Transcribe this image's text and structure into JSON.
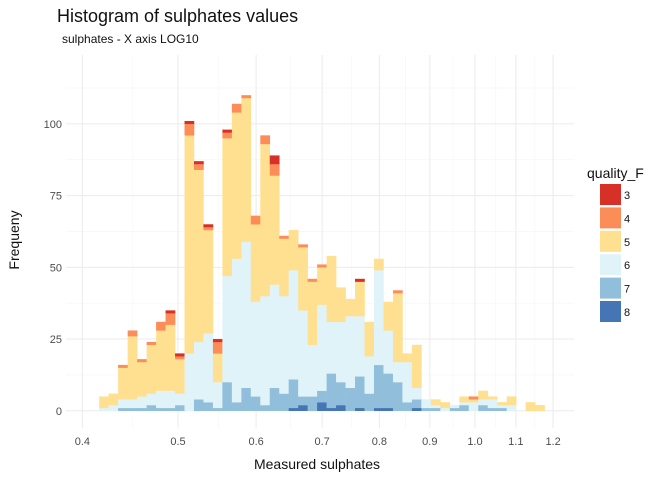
{
  "chart_data": {
    "type": "bar",
    "subtype": "stacked-histogram",
    "title": "Histogram of sulphates values",
    "subtitle": "sulphates -  X axis LOG10",
    "xlabel": "Measured sulphates",
    "ylabel": "Frequeny",
    "x_scale": "log10",
    "xlim": [
      0.385,
      1.26
    ],
    "ylim": [
      -6,
      124
    ],
    "x_ticks": [
      0.4,
      0.5,
      0.6,
      0.7,
      0.8,
      0.9,
      1.0,
      1.1,
      1.2
    ],
    "x_tick_labels": [
      "0.4",
      "0.5",
      "0.6",
      "0.7",
      "0.8",
      "0.9",
      "1.0",
      "1.1",
      "1.2"
    ],
    "y_ticks": [
      0,
      25,
      50,
      75,
      100
    ],
    "y_tick_labels": [
      "0",
      "25",
      "50",
      "75",
      "100"
    ],
    "grid": true,
    "legend_position": "right",
    "legend_title": "quality_F",
    "bin_edges": [
      0.416,
      0.4253,
      0.4348,
      0.4446,
      0.4545,
      0.4647,
      0.4751,
      0.4857,
      0.4966,
      0.5077,
      0.519,
      0.5306,
      0.5425,
      0.5546,
      0.567,
      0.5797,
      0.5926,
      0.6059,
      0.6194,
      0.6333,
      0.6474,
      0.6619,
      0.6767,
      0.6918,
      0.7073,
      0.7231,
      0.7393,
      0.7558,
      0.7727,
      0.79,
      0.8077,
      0.8258,
      0.8442,
      0.8631,
      0.8824,
      0.9022,
      0.9224,
      0.943,
      0.9641,
      0.9856,
      1.0077,
      1.0302,
      1.0533,
      1.0768,
      1.1009,
      1.1255,
      1.1507,
      1.1764
    ],
    "series": [
      {
        "name": "8",
        "color": "#4575b4",
        "values": [
          0,
          0,
          0,
          0,
          0,
          0,
          0,
          0,
          0,
          0,
          0,
          0,
          0,
          0,
          0,
          0,
          0,
          0,
          0,
          0,
          1,
          2,
          0,
          3,
          1,
          2,
          0,
          1,
          0,
          1,
          1,
          0,
          0,
          1,
          0,
          0,
          0,
          0,
          0,
          0,
          0,
          0,
          0,
          0,
          0,
          0,
          0
        ]
      },
      {
        "name": "7",
        "color": "#91bfdb",
        "values": [
          0,
          0,
          1,
          1,
          1,
          2,
          1,
          1,
          2,
          0,
          4,
          3,
          1,
          10,
          3,
          8,
          5,
          2,
          8,
          6,
          10,
          3,
          5,
          4,
          12,
          8,
          8,
          11,
          6,
          15,
          12,
          10,
          3,
          3,
          1,
          1,
          0,
          1,
          2,
          0,
          2,
          1,
          1,
          0,
          0,
          0,
          0
        ]
      },
      {
        "name": "6",
        "color": "#e0f3f8",
        "values": [
          1,
          2,
          3,
          3,
          4,
          4,
          6,
          6,
          4,
          20,
          20,
          24,
          9,
          37,
          50,
          51,
          33,
          38,
          36,
          34,
          38,
          30,
          18,
          30,
          18,
          21,
          25,
          21,
          13,
          33,
          15,
          7,
          14,
          4,
          3,
          1,
          1,
          1,
          1,
          3,
          2,
          3,
          1,
          2,
          0,
          0,
          0
        ]
      },
      {
        "name": "5",
        "color": "#fee090",
        "values": [
          4,
          4,
          11,
          22,
          12,
          17,
          21,
          23,
          12,
          76,
          60,
          36,
          10,
          48,
          51,
          50,
          27,
          53,
          38,
          20,
          14,
          22,
          22,
          13,
          23,
          12,
          6,
          12,
          12,
          4,
          10,
          24,
          3,
          15,
          0,
          2,
          2,
          0,
          2,
          1,
          3,
          1,
          1,
          3,
          0,
          3,
          2
        ]
      },
      {
        "name": "4",
        "color": "#fc8d59",
        "values": [
          0,
          0,
          1,
          2,
          1,
          1,
          3,
          4,
          1,
          4,
          2,
          1,
          4,
          2,
          3,
          1,
          3,
          3,
          4,
          1,
          0,
          1,
          1,
          1,
          0,
          0,
          0,
          0,
          0,
          0,
          0,
          1,
          0,
          0,
          0,
          0,
          0,
          0,
          0,
          1,
          0,
          0,
          0,
          0,
          0,
          0,
          0
        ]
      },
      {
        "name": "3",
        "color": "#d73027",
        "values": [
          0,
          0,
          0,
          0,
          0,
          0,
          0,
          1,
          1,
          1,
          1,
          1,
          1,
          1,
          0,
          0,
          0,
          0,
          3,
          0,
          0,
          0,
          0,
          0,
          0,
          0,
          0,
          1,
          0,
          0,
          0,
          0,
          0,
          0,
          0,
          0,
          0,
          0,
          0,
          0,
          0,
          0,
          0,
          0,
          0,
          0,
          0
        ]
      }
    ]
  }
}
